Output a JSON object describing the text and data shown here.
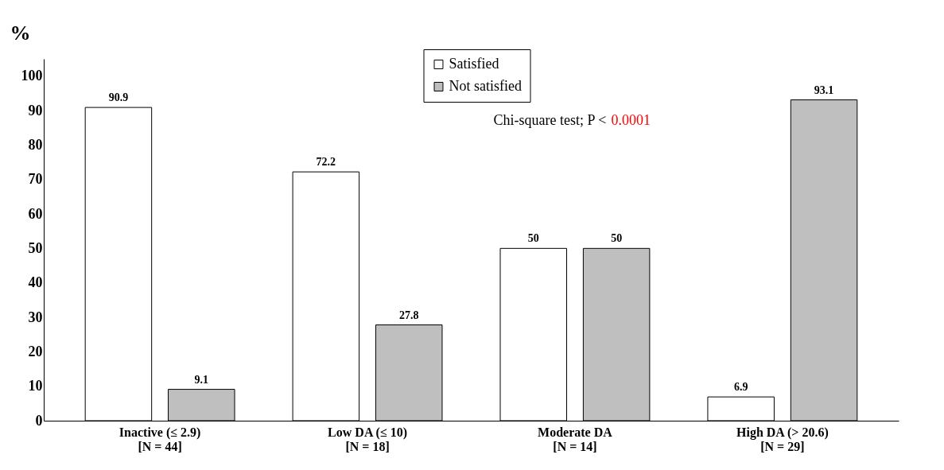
{
  "chart_data": {
    "type": "bar",
    "ylabel": "%",
    "categories": [
      "Inactive (≤ 2.9)\n[N = 44]",
      "Low DA  (≤ 10)\n[N = 18]",
      "Moderate DA\n[N = 14]",
      "High DA (> 20.6)\n[N = 29]"
    ],
    "series": [
      {
        "name": "Satisfied",
        "color": "#ffffff",
        "values": [
          90.9,
          72.2,
          50,
          6.9
        ]
      },
      {
        "name": "Not satisfied",
        "color": "#bfbfbf",
        "values": [
          9.1,
          27.8,
          50,
          93.1
        ]
      }
    ],
    "ylim": [
      0,
      105
    ],
    "yticks": [
      0,
      10,
      20,
      30,
      40,
      50,
      60,
      70,
      80,
      90,
      100
    ],
    "data_labels": true,
    "grid": false,
    "legend": "top",
    "annotations": [
      "Chi-square test; P <",
      "0.0001"
    ]
  }
}
